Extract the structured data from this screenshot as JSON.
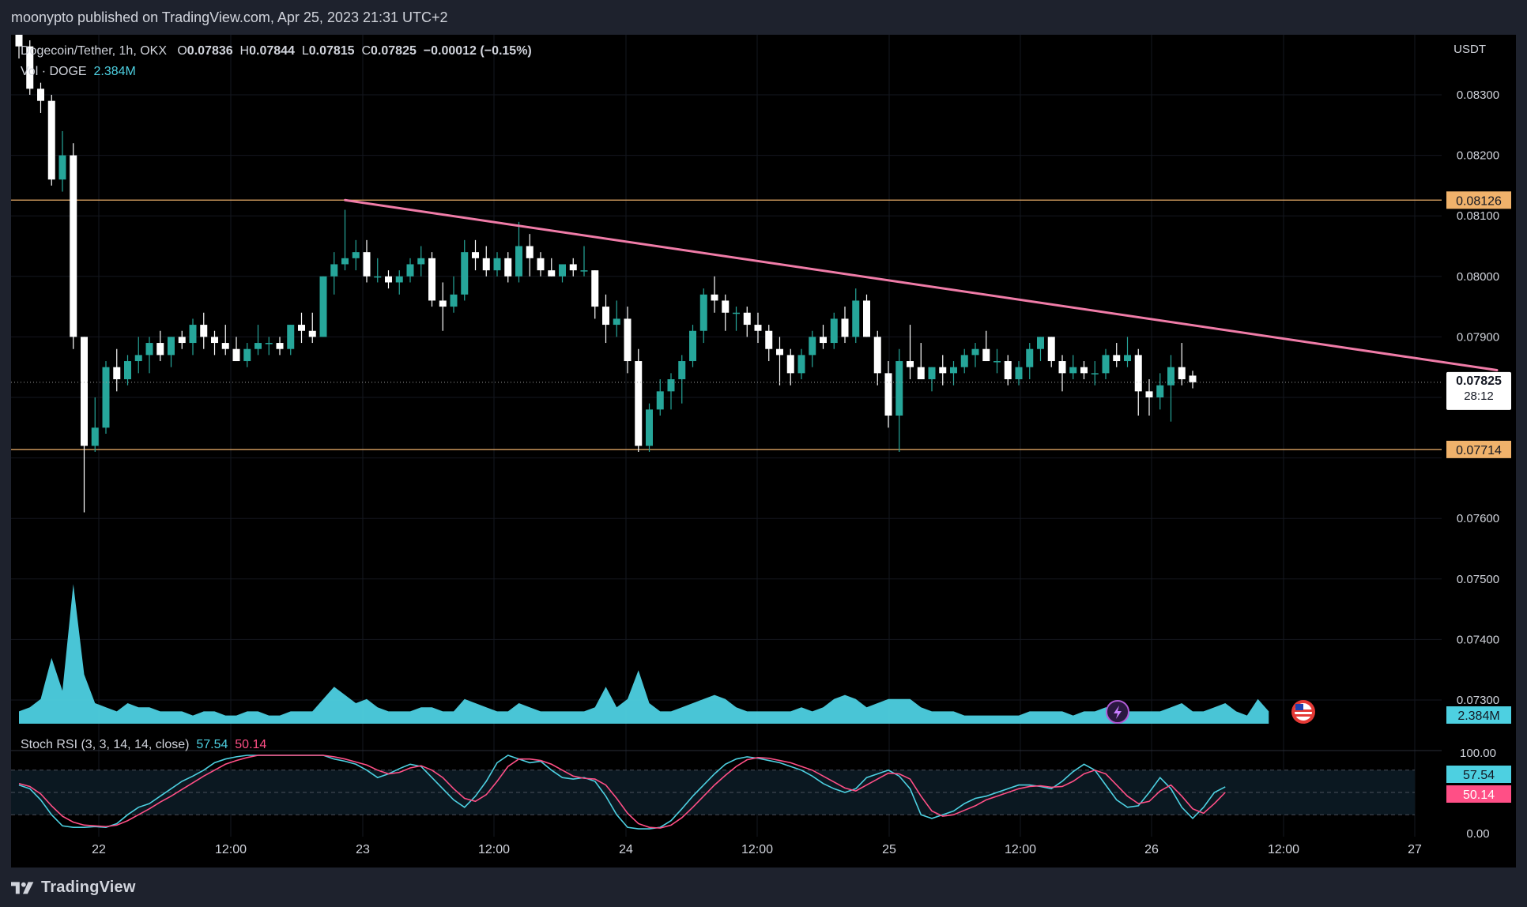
{
  "header": {
    "publish_text": "moonypto published on TradingView.com, Apr 25, 2023 21:31 UTC+2"
  },
  "footer": {
    "brand": "TradingView"
  },
  "colors": {
    "up": "#26a69a",
    "down": "#ffffff",
    "trend": "#f07ca8",
    "level": "#f0b26b",
    "volume": "#4dd0e1",
    "stoch_k": "#4dd0e1",
    "stoch_d": "#ff4f86"
  },
  "legend": {
    "symbol": "Dogecoin/Tether, 1h, OKX",
    "o_label": "O",
    "o_value": "0.07836",
    "h_label": "H",
    "h_value": "0.07844",
    "l_label": "L",
    "l_value": "0.07815",
    "c_label": "C",
    "c_value": "0.07825",
    "change": "−0.00012 (−0.15%)",
    "vol_label": "Vol · DOGE",
    "vol_value": "2.384M"
  },
  "price_axis": {
    "unit": "USDT",
    "ticks": [
      "0.08300",
      "0.08200",
      "0.08100",
      "0.08000",
      "0.07900",
      "0.07600",
      "0.07500",
      "0.07400",
      "0.07300"
    ],
    "levels": [
      {
        "label": "0.08126",
        "value": 0.08126
      },
      {
        "label": "0.07714",
        "value": 0.07714
      }
    ],
    "last_price": {
      "label": "0.07825",
      "value": 0.07825,
      "countdown": "28:12"
    },
    "volume_badge": "2.384M"
  },
  "stoch_axis": {
    "ticks": [
      "100.00",
      "0.00"
    ],
    "k_badge": "57.54",
    "d_badge": "50.14"
  },
  "time_axis": {
    "ticks": [
      "22",
      "12:00",
      "23",
      "12:00",
      "24",
      "12:00",
      "25",
      "12:00",
      "26",
      "12:00",
      "27"
    ]
  },
  "stoch_legend": {
    "label": "Stoch RSI (3, 3, 14, 14, close)",
    "k_value": "57.54",
    "d_value": "50.14"
  },
  "icons": [
    "lightning-icon",
    "us-flag-icon"
  ],
  "chart_data": [
    {
      "type": "candlestick",
      "title": "Dogecoin/Tether, 1h, OKX",
      "xlabel": "",
      "ylabel": "USDT",
      "ylim": [
        0.0727,
        0.0842
      ],
      "candles": [
        [
          0.084,
          0.0842,
          0.0836,
          0.0838
        ],
        [
          0.0838,
          0.0839,
          0.083,
          0.0831
        ],
        [
          0.0831,
          0.0832,
          0.0827,
          0.0829
        ],
        [
          0.0829,
          0.083,
          0.0815,
          0.0816
        ],
        [
          0.0816,
          0.0824,
          0.0814,
          0.082
        ],
        [
          0.082,
          0.0822,
          0.0788,
          0.079
        ],
        [
          0.079,
          0.079,
          0.0761,
          0.0772
        ],
        [
          0.0772,
          0.078,
          0.0771,
          0.0775
        ],
        [
          0.0775,
          0.0786,
          0.0774,
          0.0785
        ],
        [
          0.0785,
          0.0788,
          0.0781,
          0.0783
        ],
        [
          0.0783,
          0.0787,
          0.0782,
          0.0786
        ],
        [
          0.0786,
          0.079,
          0.0784,
          0.0787
        ],
        [
          0.0787,
          0.079,
          0.0784,
          0.0789
        ],
        [
          0.0789,
          0.0791,
          0.0786,
          0.0787
        ],
        [
          0.0787,
          0.079,
          0.0785,
          0.079
        ],
        [
          0.079,
          0.0791,
          0.0788,
          0.0789
        ],
        [
          0.0789,
          0.0793,
          0.0787,
          0.0792
        ],
        [
          0.0792,
          0.0794,
          0.0788,
          0.079
        ],
        [
          0.079,
          0.0791,
          0.0787,
          0.0789
        ],
        [
          0.0789,
          0.0792,
          0.0787,
          0.0788
        ],
        [
          0.0788,
          0.079,
          0.0786,
          0.0786
        ],
        [
          0.0786,
          0.0789,
          0.0785,
          0.0788
        ],
        [
          0.0788,
          0.0792,
          0.0787,
          0.0789
        ],
        [
          0.0789,
          0.079,
          0.0787,
          0.0789
        ],
        [
          0.0789,
          0.079,
          0.0787,
          0.0788
        ],
        [
          0.0788,
          0.0792,
          0.0787,
          0.0792
        ],
        [
          0.0792,
          0.0794,
          0.0789,
          0.0791
        ],
        [
          0.0791,
          0.0794,
          0.0789,
          0.079
        ],
        [
          0.079,
          0.08,
          0.079,
          0.08
        ],
        [
          0.08,
          0.0804,
          0.0797,
          0.0802
        ],
        [
          0.0802,
          0.0811,
          0.0801,
          0.0803
        ],
        [
          0.0803,
          0.0806,
          0.0801,
          0.0804
        ],
        [
          0.0804,
          0.0806,
          0.0799,
          0.08
        ],
        [
          0.08,
          0.0803,
          0.0799,
          0.08
        ],
        [
          0.08,
          0.0801,
          0.0798,
          0.0799
        ],
        [
          0.0799,
          0.0801,
          0.0797,
          0.08
        ],
        [
          0.08,
          0.0803,
          0.0799,
          0.0802
        ],
        [
          0.0802,
          0.0805,
          0.08,
          0.0803
        ],
        [
          0.0803,
          0.0804,
          0.0795,
          0.0796
        ],
        [
          0.0796,
          0.0799,
          0.0791,
          0.0795
        ],
        [
          0.0795,
          0.08,
          0.0794,
          0.0797
        ],
        [
          0.0797,
          0.0806,
          0.0796,
          0.0804
        ],
        [
          0.0804,
          0.0806,
          0.0801,
          0.0803
        ],
        [
          0.0803,
          0.0805,
          0.08,
          0.0801
        ],
        [
          0.0801,
          0.0804,
          0.08,
          0.0803
        ],
        [
          0.0803,
          0.0804,
          0.0799,
          0.08
        ],
        [
          0.08,
          0.0809,
          0.0799,
          0.0805
        ],
        [
          0.0805,
          0.0807,
          0.08,
          0.0803
        ],
        [
          0.0803,
          0.0804,
          0.08,
          0.0801
        ],
        [
          0.0801,
          0.0803,
          0.08,
          0.08
        ],
        [
          0.08,
          0.0802,
          0.0799,
          0.0802
        ],
        [
          0.0802,
          0.0803,
          0.08,
          0.0801
        ],
        [
          0.0801,
          0.0805,
          0.08,
          0.0801
        ],
        [
          0.0801,
          0.0801,
          0.0793,
          0.0795
        ],
        [
          0.0795,
          0.0797,
          0.0789,
          0.0792
        ],
        [
          0.0792,
          0.0796,
          0.079,
          0.0793
        ],
        [
          0.0793,
          0.0795,
          0.0784,
          0.0786
        ],
        [
          0.0786,
          0.0788,
          0.0771,
          0.0772
        ],
        [
          0.0772,
          0.0779,
          0.0771,
          0.0778
        ],
        [
          0.0778,
          0.0783,
          0.0777,
          0.0781
        ],
        [
          0.0781,
          0.0784,
          0.0778,
          0.0783
        ],
        [
          0.0783,
          0.0787,
          0.0779,
          0.0786
        ],
        [
          0.0786,
          0.0792,
          0.0785,
          0.0791
        ],
        [
          0.0791,
          0.0798,
          0.0789,
          0.0797
        ],
        [
          0.0797,
          0.08,
          0.0794,
          0.0796
        ],
        [
          0.0796,
          0.0797,
          0.0791,
          0.0794
        ],
        [
          0.0794,
          0.0795,
          0.0791,
          0.0794
        ],
        [
          0.0794,
          0.0795,
          0.079,
          0.0792
        ],
        [
          0.0792,
          0.0794,
          0.0789,
          0.0791
        ],
        [
          0.0791,
          0.0792,
          0.0786,
          0.0788
        ],
        [
          0.0788,
          0.079,
          0.0782,
          0.0787
        ],
        [
          0.0787,
          0.0788,
          0.0782,
          0.0784
        ],
        [
          0.0784,
          0.0788,
          0.0783,
          0.0787
        ],
        [
          0.0787,
          0.0791,
          0.0785,
          0.079
        ],
        [
          0.079,
          0.0792,
          0.0788,
          0.0789
        ],
        [
          0.0789,
          0.0794,
          0.0788,
          0.0793
        ],
        [
          0.0793,
          0.0795,
          0.0789,
          0.079
        ],
        [
          0.079,
          0.0798,
          0.0789,
          0.0796
        ],
        [
          0.0796,
          0.0797,
          0.079,
          0.079
        ],
        [
          0.079,
          0.0791,
          0.0782,
          0.0784
        ],
        [
          0.0784,
          0.0786,
          0.0775,
          0.0777
        ],
        [
          0.0777,
          0.0788,
          0.0771,
          0.0786
        ],
        [
          0.0786,
          0.0792,
          0.0783,
          0.0785
        ],
        [
          0.0785,
          0.0789,
          0.0783,
          0.0783
        ],
        [
          0.0783,
          0.0785,
          0.0781,
          0.0785
        ],
        [
          0.0785,
          0.0787,
          0.0782,
          0.0784
        ],
        [
          0.0784,
          0.0786,
          0.0782,
          0.0785
        ],
        [
          0.0785,
          0.0788,
          0.0784,
          0.0787
        ],
        [
          0.0787,
          0.0789,
          0.0785,
          0.0788
        ],
        [
          0.0788,
          0.0791,
          0.0786,
          0.0786
        ],
        [
          0.0786,
          0.0788,
          0.0784,
          0.0786
        ],
        [
          0.0786,
          0.0787,
          0.0782,
          0.0783
        ],
        [
          0.0783,
          0.0786,
          0.0782,
          0.0785
        ],
        [
          0.0785,
          0.0789,
          0.0783,
          0.0788
        ],
        [
          0.0788,
          0.079,
          0.0786,
          0.079
        ],
        [
          0.079,
          0.079,
          0.0785,
          0.0786
        ],
        [
          0.0786,
          0.0787,
          0.0781,
          0.0784
        ],
        [
          0.0784,
          0.0787,
          0.0783,
          0.0785
        ],
        [
          0.0785,
          0.0786,
          0.0783,
          0.0784
        ],
        [
          0.0784,
          0.0786,
          0.0782,
          0.0784
        ],
        [
          0.0784,
          0.0788,
          0.0783,
          0.0787
        ],
        [
          0.0787,
          0.0789,
          0.0785,
          0.0786
        ],
        [
          0.0786,
          0.079,
          0.0785,
          0.0787
        ],
        [
          0.0787,
          0.0788,
          0.0777,
          0.0781
        ],
        [
          0.0781,
          0.0783,
          0.0777,
          0.078
        ],
        [
          0.078,
          0.0784,
          0.0778,
          0.0782
        ],
        [
          0.0782,
          0.0787,
          0.0776,
          0.0785
        ],
        [
          0.0785,
          0.0789,
          0.0782,
          0.0783
        ],
        [
          0.07836,
          0.07844,
          0.07815,
          0.07825
        ]
      ],
      "trendline": {
        "from": [
          30,
          0.08126
        ],
        "to": [
          136,
          0.07845
        ]
      },
      "horizontal_levels": [
        0.08126,
        0.07714
      ],
      "volume": {
        "ymax": 3.5,
        "values": [
          0.3,
          0.4,
          0.6,
          1.6,
          0.8,
          3.4,
          1.2,
          0.5,
          0.4,
          0.3,
          0.5,
          0.4,
          0.4,
          0.3,
          0.3,
          0.3,
          0.2,
          0.3,
          0.3,
          0.2,
          0.2,
          0.3,
          0.3,
          0.2,
          0.2,
          0.3,
          0.3,
          0.3,
          0.6,
          0.9,
          0.7,
          0.5,
          0.6,
          0.4,
          0.3,
          0.3,
          0.3,
          0.4,
          0.4,
          0.3,
          0.3,
          0.6,
          0.5,
          0.4,
          0.3,
          0.3,
          0.5,
          0.4,
          0.3,
          0.3,
          0.3,
          0.3,
          0.3,
          0.4,
          0.9,
          0.4,
          0.6,
          1.3,
          0.5,
          0.3,
          0.3,
          0.4,
          0.5,
          0.6,
          0.7,
          0.6,
          0.4,
          0.3,
          0.3,
          0.3,
          0.3,
          0.3,
          0.4,
          0.3,
          0.4,
          0.6,
          0.7,
          0.6,
          0.4,
          0.5,
          0.6,
          0.6,
          0.6,
          0.4,
          0.3,
          0.3,
          0.3,
          0.2,
          0.2,
          0.2,
          0.2,
          0.2,
          0.2,
          0.3,
          0.3,
          0.3,
          0.3,
          0.2,
          0.3,
          0.3,
          0.4,
          0.4,
          0.3,
          0.3,
          0.3,
          0.3,
          0.4,
          0.5,
          0.3,
          0.3,
          0.4,
          0.5,
          0.3,
          0.2,
          0.6,
          0.3
        ]
      }
    },
    {
      "type": "line",
      "title": "Stoch RSI (3, 3, 14, 14, close)",
      "ylim": [
        0,
        100
      ],
      "bands": [
        20,
        50,
        80
      ],
      "series": [
        {
          "name": "K",
          "values": [
            60,
            55,
            40,
            20,
            5,
            3,
            3,
            4,
            3,
            8,
            20,
            30,
            35,
            45,
            55,
            65,
            72,
            80,
            90,
            95,
            98,
            100,
            100,
            100,
            100,
            100,
            100,
            100,
            100,
            95,
            92,
            88,
            80,
            70,
            75,
            82,
            88,
            85,
            70,
            55,
            40,
            30,
            45,
            65,
            90,
            100,
            95,
            90,
            92,
            80,
            70,
            68,
            70,
            65,
            45,
            20,
            3,
            1,
            1,
            3,
            12,
            28,
            45,
            60,
            75,
            88,
            95,
            98,
            96,
            93,
            90,
            85,
            80,
            72,
            62,
            55,
            50,
            55,
            70,
            75,
            80,
            72,
            55,
            20,
            15,
            20,
            25,
            35,
            42,
            45,
            50,
            55,
            60,
            60,
            58,
            55,
            65,
            78,
            88,
            80,
            60,
            40,
            30,
            32,
            50,
            70,
            55,
            30,
            15,
            30,
            50,
            57.54
          ]
        },
        {
          "name": "D",
          "values": [
            62,
            58,
            48,
            32,
            18,
            10,
            6,
            5,
            4,
            6,
            12,
            20,
            28,
            37,
            45,
            54,
            63,
            72,
            80,
            88,
            93,
            97,
            100,
            100,
            100,
            100,
            100,
            100,
            100,
            98,
            95,
            91,
            87,
            80,
            75,
            77,
            83,
            86,
            80,
            70,
            55,
            42,
            38,
            47,
            65,
            85,
            95,
            95,
            93,
            88,
            80,
            72,
            69,
            68,
            60,
            42,
            22,
            8,
            3,
            2,
            6,
            16,
            30,
            45,
            60,
            73,
            85,
            94,
            97,
            96,
            93,
            90,
            85,
            80,
            72,
            64,
            56,
            52,
            60,
            68,
            76,
            75,
            68,
            45,
            25,
            18,
            20,
            26,
            32,
            40,
            45,
            50,
            55,
            58,
            59,
            57,
            58,
            65,
            75,
            80,
            75,
            60,
            45,
            35,
            38,
            52,
            60,
            45,
            28,
            22,
            35,
            50.14
          ]
        }
      ]
    }
  ]
}
